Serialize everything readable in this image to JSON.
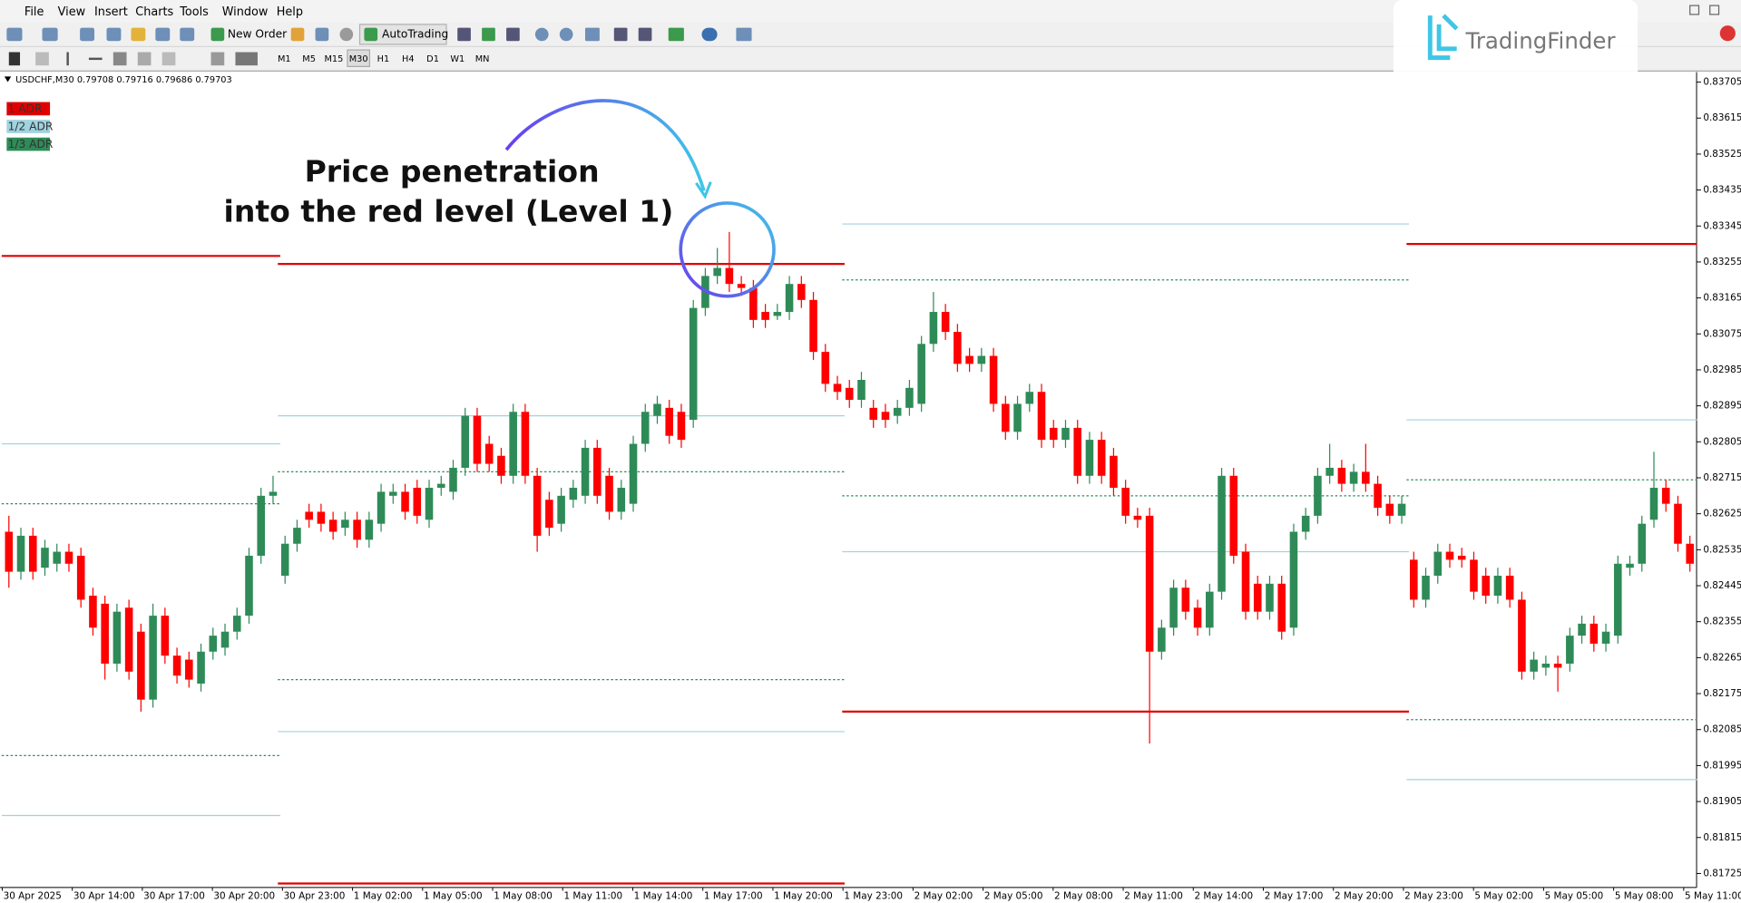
{
  "menu": [
    "File",
    "View",
    "Insert",
    "Charts",
    "Tools",
    "Window",
    "Help"
  ],
  "toolbar": {
    "new_order": "New Order",
    "auto_trading": "AutoTrading"
  },
  "timeframes": [
    "M1",
    "M5",
    "M15",
    "M30",
    "H1",
    "H4",
    "D1",
    "W1",
    "MN"
  ],
  "logo": "TradingFinder",
  "chart_data": {
    "type": "candlestick",
    "header": "USDCHF,M30  0.79708 0.79716 0.79686 0.79703",
    "annotation": [
      "Price penetration",
      "into the red level (Level 1)"
    ],
    "up_color": "#2e8b57",
    "down_color": "#ff0000",
    "legend": [
      {
        "label": "1 ADR",
        "color": "#e00000"
      },
      {
        "label": "1/2 ADR",
        "color": "#9fd3df"
      },
      {
        "label": "1/3 ADR",
        "color": "#2e8b57"
      }
    ],
    "ylim": [
      0.8169,
      0.8373
    ],
    "yticks": [
      0.83705,
      0.83615,
      0.83525,
      0.83435,
      0.83345,
      0.83255,
      0.83165,
      0.83075,
      0.82985,
      0.82895,
      0.82805,
      0.82715,
      0.82625,
      0.82535,
      0.82445,
      0.82355,
      0.82265,
      0.82175,
      0.82085,
      0.81995,
      0.81905,
      0.81815,
      0.81725
    ],
    "x": [
      "30 Apr 2025",
      "30 Apr 14:00",
      "30 Apr 17:00",
      "30 Apr 20:00",
      "30 Apr 23:00",
      "1 May 02:00",
      "1 May 05:00",
      "1 May 08:00",
      "1 May 11:00",
      "1 May 14:00",
      "1 May 17:00",
      "1 May 20:00",
      "1 May 23:00",
      "2 May 02:00",
      "2 May 05:00",
      "2 May 08:00",
      "2 May 11:00",
      "2 May 14:00",
      "2 May 17:00",
      "2 May 20:00",
      "2 May 23:00",
      "5 May 02:00",
      "5 May 05:00",
      "5 May 08:00",
      "5 May 11:00"
    ],
    "days": [
      {
        "levels": [
          [
            0.8327
          ],
          [
            0.828,
            0.8187
          ],
          [
            0.8265,
            0.8202
          ]
        ],
        "candles": [
          [
            0.8258,
            0.8262,
            0.8244,
            0.8248
          ],
          [
            0.8248,
            0.8259,
            0.8246,
            0.8257
          ],
          [
            0.8257,
            0.8259,
            0.8246,
            0.8248
          ],
          [
            0.8249,
            0.8256,
            0.8247,
            0.8254
          ],
          [
            0.825,
            0.8255,
            0.8248,
            0.8253
          ],
          [
            0.8253,
            0.8255,
            0.8248,
            0.825
          ],
          [
            0.8252,
            0.8254,
            0.8239,
            0.8241
          ],
          [
            0.8242,
            0.8244,
            0.8232,
            0.8234
          ],
          [
            0.824,
            0.8242,
            0.8221,
            0.8225
          ],
          [
            0.8225,
            0.824,
            0.8223,
            0.8238
          ],
          [
            0.8239,
            0.8241,
            0.8221,
            0.8223
          ],
          [
            0.8233,
            0.8235,
            0.8213,
            0.8216
          ],
          [
            0.8216,
            0.824,
            0.8214,
            0.8237
          ],
          [
            0.8237,
            0.8239,
            0.8225,
            0.8227
          ],
          [
            0.8227,
            0.8229,
            0.822,
            0.8222
          ],
          [
            0.8226,
            0.8228,
            0.8219,
            0.8221
          ],
          [
            0.822,
            0.823,
            0.8218,
            0.8228
          ],
          [
            0.8228,
            0.8234,
            0.8226,
            0.8232
          ],
          [
            0.8229,
            0.8235,
            0.8227,
            0.8233
          ],
          [
            0.8233,
            0.8239,
            0.8231,
            0.8237
          ],
          [
            0.8237,
            0.8254,
            0.8235,
            0.8252
          ],
          [
            0.8252,
            0.8269,
            0.825,
            0.8267
          ],
          [
            0.8267,
            0.8272,
            0.8265,
            0.8268
          ]
        ]
      },
      {
        "levels": [
          [
            0.8325,
            0.817
          ],
          [
            0.8287,
            0.8208
          ],
          [
            0.8273,
            0.8221
          ]
        ],
        "candles": [
          [
            0.8247,
            0.8257,
            0.8245,
            0.8255
          ],
          [
            0.8255,
            0.8261,
            0.8253,
            0.8259
          ],
          [
            0.8263,
            0.8265,
            0.8259,
            0.8261
          ],
          [
            0.8263,
            0.8265,
            0.8258,
            0.826
          ],
          [
            0.8261,
            0.8263,
            0.8256,
            0.8258
          ],
          [
            0.8259,
            0.8263,
            0.8257,
            0.8261
          ],
          [
            0.8261,
            0.8263,
            0.8254,
            0.8256
          ],
          [
            0.8256,
            0.8263,
            0.8254,
            0.8261
          ],
          [
            0.826,
            0.827,
            0.8258,
            0.8268
          ],
          [
            0.8267,
            0.827,
            0.8265,
            0.8268
          ],
          [
            0.8268,
            0.827,
            0.8261,
            0.8263
          ],
          [
            0.8269,
            0.8271,
            0.826,
            0.8262
          ],
          [
            0.8261,
            0.8271,
            0.8259,
            0.8269
          ],
          [
            0.8269,
            0.8272,
            0.8267,
            0.827
          ],
          [
            0.8268,
            0.8276,
            0.8266,
            0.8274
          ],
          [
            0.8274,
            0.8289,
            0.8272,
            0.8287
          ],
          [
            0.8287,
            0.8289,
            0.8273,
            0.8275
          ],
          [
            0.828,
            0.8282,
            0.8273,
            0.8275
          ],
          [
            0.8277,
            0.8279,
            0.827,
            0.8272
          ],
          [
            0.8272,
            0.829,
            0.827,
            0.8288
          ],
          [
            0.8288,
            0.829,
            0.827,
            0.8272
          ],
          [
            0.8272,
            0.8274,
            0.8253,
            0.8257
          ],
          [
            0.8266,
            0.8268,
            0.8257,
            0.8259
          ],
          [
            0.826,
            0.8269,
            0.8258,
            0.8267
          ],
          [
            0.8266,
            0.8271,
            0.8264,
            0.8269
          ],
          [
            0.8267,
            0.8281,
            0.8265,
            0.8279
          ],
          [
            0.8279,
            0.8281,
            0.8265,
            0.8267
          ],
          [
            0.8272,
            0.8274,
            0.8261,
            0.8263
          ],
          [
            0.8263,
            0.8271,
            0.8261,
            0.8269
          ],
          [
            0.8265,
            0.8282,
            0.8263,
            0.828
          ],
          [
            0.828,
            0.829,
            0.8278,
            0.8288
          ],
          [
            0.8287,
            0.8292,
            0.8285,
            0.829
          ],
          [
            0.8289,
            0.8291,
            0.828,
            0.8282
          ],
          [
            0.8288,
            0.829,
            0.8279,
            0.8281
          ],
          [
            0.8286,
            0.8316,
            0.8284,
            0.8314
          ],
          [
            0.8314,
            0.8324,
            0.8312,
            0.8322
          ],
          [
            0.8322,
            0.8329,
            0.832,
            0.8324
          ],
          [
            0.8324,
            0.8333,
            0.8318,
            0.832
          ],
          [
            0.832,
            0.8322,
            0.8317,
            0.8319
          ],
          [
            0.8319,
            0.8321,
            0.8309,
            0.8311
          ],
          [
            0.8313,
            0.8315,
            0.8309,
            0.8311
          ],
          [
            0.8312,
            0.8315,
            0.8311,
            0.8313
          ],
          [
            0.8313,
            0.8322,
            0.8311,
            0.832
          ],
          [
            0.832,
            0.8322,
            0.8314,
            0.8316
          ],
          [
            0.8316,
            0.8318,
            0.8301,
            0.8303
          ],
          [
            0.8303,
            0.8305,
            0.8293,
            0.8295
          ],
          [
            0.8295,
            0.8297,
            0.8291,
            0.8293
          ]
        ]
      },
      {
        "levels": [
          [
            0.8213
          ],
          [
            0.8335,
            0.8253
          ],
          [
            0.8321,
            0.8267
          ]
        ],
        "candles": [
          [
            0.8294,
            0.8296,
            0.8289,
            0.8291
          ],
          [
            0.8291,
            0.8298,
            0.8289,
            0.8296
          ],
          [
            0.8289,
            0.8291,
            0.8284,
            0.8286
          ],
          [
            0.8288,
            0.829,
            0.8284,
            0.8286
          ],
          [
            0.8287,
            0.8291,
            0.8285,
            0.8289
          ],
          [
            0.8289,
            0.8296,
            0.8287,
            0.8294
          ],
          [
            0.829,
            0.8307,
            0.8288,
            0.8305
          ],
          [
            0.8305,
            0.8318,
            0.8303,
            0.8313
          ],
          [
            0.8313,
            0.8315,
            0.8306,
            0.8308
          ],
          [
            0.8308,
            0.831,
            0.8298,
            0.83
          ],
          [
            0.8302,
            0.8304,
            0.8298,
            0.83
          ],
          [
            0.83,
            0.8304,
            0.8298,
            0.8302
          ],
          [
            0.8302,
            0.8304,
            0.8288,
            0.829
          ],
          [
            0.829,
            0.8292,
            0.8281,
            0.8283
          ],
          [
            0.8283,
            0.8292,
            0.8281,
            0.829
          ],
          [
            0.829,
            0.8295,
            0.8288,
            0.8293
          ],
          [
            0.8293,
            0.8295,
            0.8279,
            0.8281
          ],
          [
            0.8284,
            0.8286,
            0.8279,
            0.8281
          ],
          [
            0.8281,
            0.8286,
            0.8279,
            0.8284
          ],
          [
            0.8284,
            0.8286,
            0.827,
            0.8272
          ],
          [
            0.8272,
            0.8283,
            0.827,
            0.8281
          ],
          [
            0.8281,
            0.8283,
            0.827,
            0.8272
          ],
          [
            0.8277,
            0.8279,
            0.8267,
            0.8269
          ],
          [
            0.8269,
            0.8271,
            0.826,
            0.8262
          ],
          [
            0.8262,
            0.8264,
            0.8259,
            0.8261
          ],
          [
            0.8262,
            0.8264,
            0.8205,
            0.8228
          ],
          [
            0.8228,
            0.8236,
            0.8226,
            0.8234
          ],
          [
            0.8234,
            0.8246,
            0.8232,
            0.8244
          ],
          [
            0.8244,
            0.8246,
            0.8236,
            0.8238
          ],
          [
            0.8239,
            0.8241,
            0.8232,
            0.8234
          ],
          [
            0.8234,
            0.8245,
            0.8232,
            0.8243
          ],
          [
            0.8243,
            0.8274,
            0.8241,
            0.8272
          ],
          [
            0.8272,
            0.8274,
            0.825,
            0.8252
          ],
          [
            0.8253,
            0.8255,
            0.8236,
            0.8238
          ],
          [
            0.8245,
            0.8247,
            0.8236,
            0.8238
          ],
          [
            0.8238,
            0.8247,
            0.8236,
            0.8245
          ],
          [
            0.8245,
            0.8247,
            0.8231,
            0.8233
          ],
          [
            0.8234,
            0.826,
            0.8232,
            0.8258
          ],
          [
            0.8258,
            0.8264,
            0.8256,
            0.8262
          ],
          [
            0.8262,
            0.8274,
            0.826,
            0.8272
          ],
          [
            0.8272,
            0.828,
            0.827,
            0.8274
          ],
          [
            0.8274,
            0.8276,
            0.8268,
            0.827
          ],
          [
            0.827,
            0.8275,
            0.8268,
            0.8273
          ],
          [
            0.8273,
            0.828,
            0.8268,
            0.827
          ],
          [
            0.827,
            0.8272,
            0.8262,
            0.8264
          ],
          [
            0.8265,
            0.8267,
            0.826,
            0.8262
          ],
          [
            0.8262,
            0.8267,
            0.826,
            0.8265
          ]
        ]
      },
      {
        "levels": [
          [
            0.833
          ],
          [
            0.8286,
            0.8196
          ],
          [
            0.8271,
            0.8211
          ]
        ],
        "candles": [
          [
            0.8251,
            0.8253,
            0.8239,
            0.8241
          ],
          [
            0.8241,
            0.8249,
            0.8239,
            0.8247
          ],
          [
            0.8247,
            0.8255,
            0.8245,
            0.8253
          ],
          [
            0.8253,
            0.8255,
            0.8249,
            0.8251
          ],
          [
            0.8252,
            0.8254,
            0.8249,
            0.8251
          ],
          [
            0.8251,
            0.8253,
            0.8241,
            0.8243
          ],
          [
            0.8247,
            0.8249,
            0.824,
            0.8242
          ],
          [
            0.8242,
            0.8249,
            0.824,
            0.8247
          ],
          [
            0.8247,
            0.8249,
            0.8239,
            0.8241
          ],
          [
            0.8241,
            0.8243,
            0.8221,
            0.8223
          ],
          [
            0.8223,
            0.8228,
            0.8221,
            0.8226
          ],
          [
            0.8224,
            0.8227,
            0.8222,
            0.8225
          ],
          [
            0.8225,
            0.8227,
            0.8218,
            0.8224
          ],
          [
            0.8225,
            0.8234,
            0.8223,
            0.8232
          ],
          [
            0.8232,
            0.8237,
            0.823,
            0.8235
          ],
          [
            0.8235,
            0.8237,
            0.8228,
            0.823
          ],
          [
            0.823,
            0.8235,
            0.8228,
            0.8233
          ],
          [
            0.8232,
            0.8252,
            0.823,
            0.825
          ],
          [
            0.8249,
            0.8252,
            0.8247,
            0.825
          ],
          [
            0.825,
            0.8262,
            0.8248,
            0.826
          ],
          [
            0.8261,
            0.8278,
            0.8259,
            0.8269
          ],
          [
            0.8269,
            0.8271,
            0.8263,
            0.8265
          ],
          [
            0.8265,
            0.8267,
            0.8253,
            0.8255
          ],
          [
            0.8255,
            0.8257,
            0.8248,
            0.825
          ]
        ]
      }
    ]
  }
}
